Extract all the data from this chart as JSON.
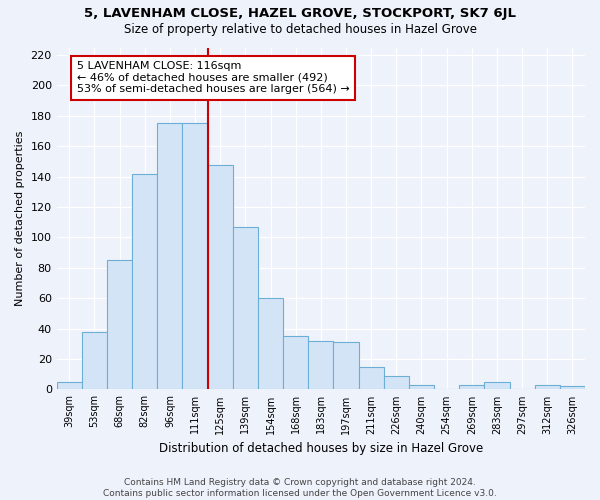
{
  "title": "5, LAVENHAM CLOSE, HAZEL GROVE, STOCKPORT, SK7 6JL",
  "subtitle": "Size of property relative to detached houses in Hazel Grove",
  "xlabel": "Distribution of detached houses by size in Hazel Grove",
  "ylabel": "Number of detached properties",
  "bar_labels": [
    "39sqm",
    "53sqm",
    "68sqm",
    "82sqm",
    "96sqm",
    "111sqm",
    "125sqm",
    "139sqm",
    "154sqm",
    "168sqm",
    "183sqm",
    "197sqm",
    "211sqm",
    "226sqm",
    "240sqm",
    "254sqm",
    "269sqm",
    "283sqm",
    "297sqm",
    "312sqm",
    "326sqm"
  ],
  "bar_heights": [
    5,
    38,
    85,
    142,
    175,
    175,
    148,
    107,
    60,
    35,
    32,
    31,
    15,
    9,
    3,
    0,
    3,
    5,
    0,
    3,
    2
  ],
  "bar_color": "#d4e4f7",
  "bar_edge_color": "#6baed6",
  "vline_color": "#cc0000",
  "annotation_text": "5 LAVENHAM CLOSE: 116sqm\n← 46% of detached houses are smaller (492)\n53% of semi-detached houses are larger (564) →",
  "annotation_box_color": "#ffffff",
  "annotation_box_edge": "#cc0000",
  "ylim": [
    0,
    225
  ],
  "yticks": [
    0,
    20,
    40,
    60,
    80,
    100,
    120,
    140,
    160,
    180,
    200,
    220
  ],
  "footer": "Contains HM Land Registry data © Crown copyright and database right 2024.\nContains public sector information licensed under the Open Government Licence v3.0.",
  "background_color": "#eef2fb",
  "grid_color": "#ffffff"
}
